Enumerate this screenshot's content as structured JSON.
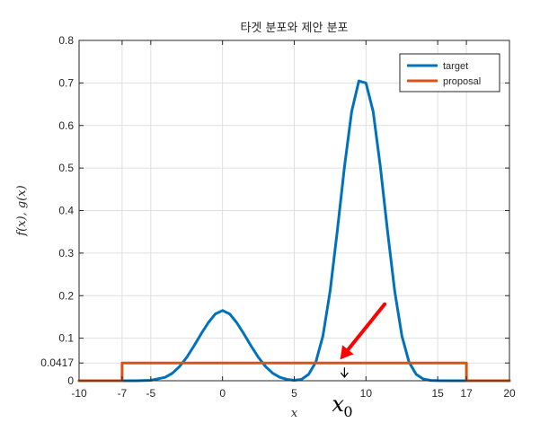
{
  "chart_data": {
    "type": "line",
    "title": "타겟 분포와 제안 분포",
    "xlabel": "x",
    "ylabel": "f(x), g(x)",
    "xlim": [
      -10,
      20
    ],
    "ylim": [
      0,
      0.8
    ],
    "x_ticks": [
      -10,
      -7,
      -5,
      0,
      5,
      10,
      15,
      17,
      20
    ],
    "y_ticks": [
      0,
      0.0417,
      0.1,
      0.2,
      0.3,
      0.4,
      0.5,
      0.6,
      0.7,
      0.8
    ],
    "x_tick_labels": [
      "-10",
      "-7",
      "-5",
      "0",
      "5",
      "10",
      "15",
      "17",
      "20"
    ],
    "y_tick_labels": [
      "0",
      "0.0417",
      "0.1",
      "0.2",
      "0.3",
      "0.4",
      "0.5",
      "0.6",
      "0.7",
      "0.8"
    ],
    "grid": true,
    "legend_position": "top-right",
    "series": [
      {
        "name": "target",
        "color": "#0072BD",
        "x": [
          -10,
          -6,
          -5,
          -4,
          -3.5,
          -3,
          -2.5,
          -2,
          -1.5,
          -1,
          -0.5,
          0,
          0.5,
          1,
          1.5,
          2,
          2.5,
          3,
          3.5,
          4,
          4.5,
          5,
          5.5,
          6,
          6.5,
          7,
          7.5,
          8,
          8.5,
          9,
          9.5,
          10,
          10.5,
          11,
          11.5,
          12,
          12.5,
          13,
          13.5,
          14,
          14.5,
          15,
          16,
          17,
          20
        ],
        "y": [
          0,
          0.0001,
          0.0011,
          0.0081,
          0.0176,
          0.0333,
          0.0548,
          0.0812,
          0.1096,
          0.1362,
          0.1571,
          0.165,
          0.1571,
          0.1362,
          0.1096,
          0.0812,
          0.0548,
          0.0333,
          0.0176,
          0.0081,
          0.0032,
          0.0011,
          0.0032,
          0.0149,
          0.044,
          0.1054,
          0.2106,
          0.352,
          0.5032,
          0.633,
          0.7045,
          0.7,
          0.633,
          0.5032,
          0.352,
          0.2106,
          0.1054,
          0.044,
          0.0149,
          0.0041,
          0.0009,
          0.0002,
          0,
          0,
          0
        ]
      },
      {
        "name": "proposal",
        "color": "#D95319",
        "x": [
          -10,
          -7,
          -7,
          17,
          17,
          20
        ],
        "y": [
          0,
          0,
          0.0417,
          0.0417,
          0,
          0
        ]
      }
    ],
    "annotations": [
      {
        "text": "x",
        "subscript": "0",
        "x": 8.5,
        "color": "#000000"
      },
      {
        "type": "arrow",
        "color": "#ff0000",
        "from": [
          11.3,
          0.18
        ],
        "to": [
          8.2,
          0.05
        ]
      }
    ]
  }
}
